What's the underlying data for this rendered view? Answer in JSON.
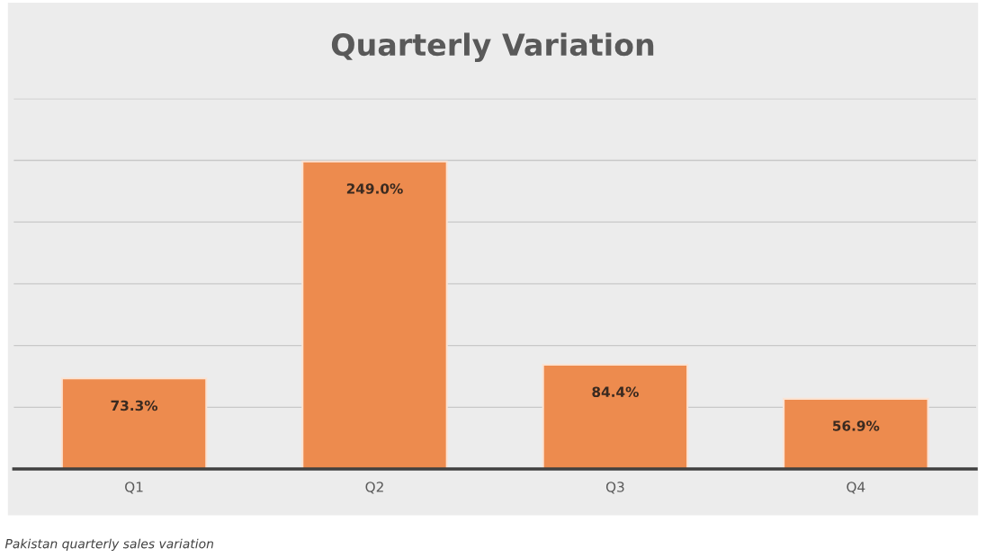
{
  "chart_data": {
    "type": "bar",
    "title": "Quarterly Variation",
    "categories": [
      "Q1",
      "Q2",
      "Q3",
      "Q4"
    ],
    "values": [
      73.3,
      249.0,
      84.4,
      56.9
    ],
    "value_labels": [
      "73.3%",
      "249.0%",
      "84.4%",
      "56.9%"
    ],
    "color": "#ed8b4e",
    "ylim": [
      0,
      300
    ],
    "yticks": [
      0,
      50,
      100,
      150,
      200,
      250,
      300
    ],
    "grid": "y",
    "tick_labels": "x",
    "legend": false,
    "annotations": [
      "Pakistan quarterly sales variation"
    ]
  }
}
